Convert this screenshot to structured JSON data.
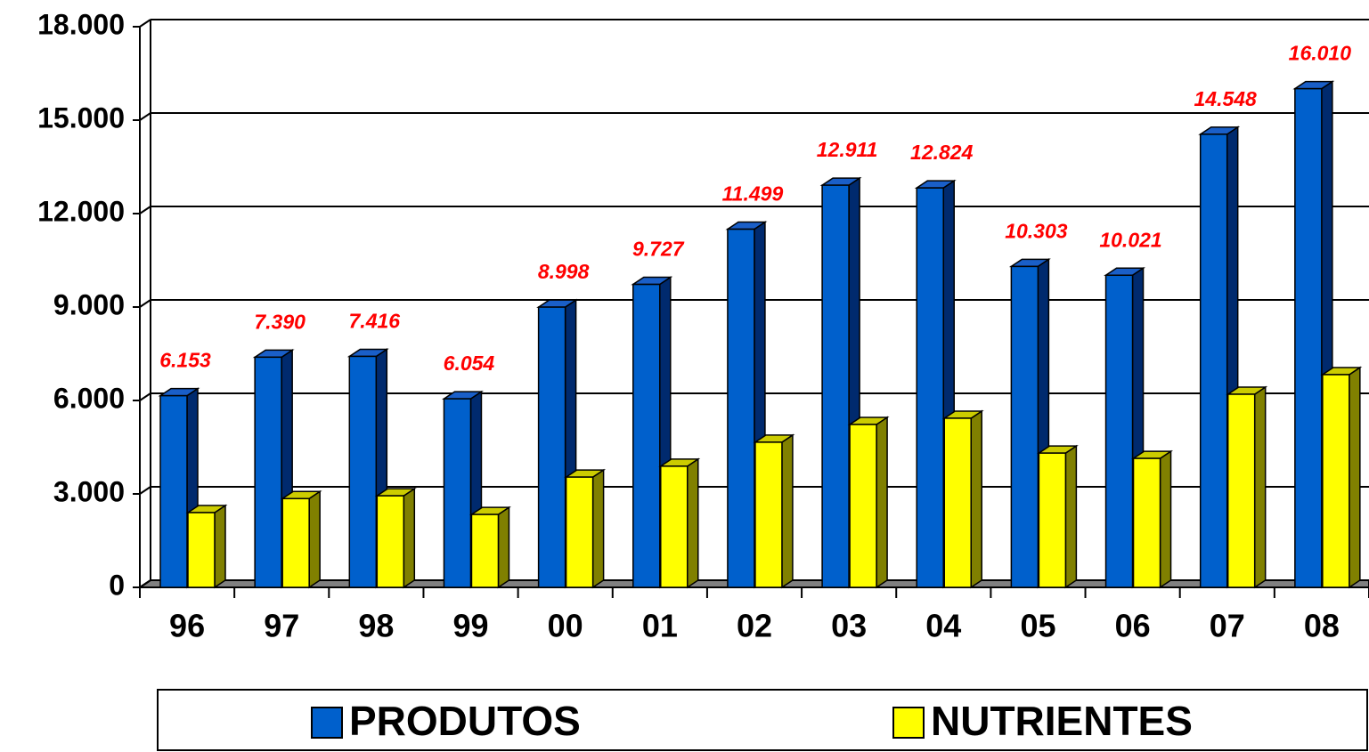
{
  "chart_data": {
    "type": "bar3d",
    "categories": [
      "96",
      "97",
      "98",
      "99",
      "00",
      "01",
      "02",
      "03",
      "04",
      "05",
      "06",
      "07",
      "08"
    ],
    "series": [
      {
        "name": "PRODUTOS",
        "color": "#0060cc",
        "side_color": "#002a6e",
        "top_color": "#1a5fc8",
        "values": [
          6153,
          7390,
          7416,
          6054,
          8998,
          9727,
          11499,
          12911,
          12824,
          10303,
          10021,
          14548,
          16010
        ],
        "value_labels": [
          "6.153",
          "7.390",
          "7.416",
          "6.054",
          "8.998",
          "9.727",
          "11.499",
          "12.911",
          "12.824",
          "10.303",
          "10.021",
          "14.548",
          "16.010"
        ]
      },
      {
        "name": "NUTRIENTES",
        "color": "#ffff00",
        "side_color": "#808000",
        "top_color": "#cccc00",
        "values": [
          2400,
          2850,
          2940,
          2340,
          3540,
          3890,
          4660,
          5230,
          5430,
          4310,
          4140,
          6200,
          6830
        ]
      }
    ],
    "ylim": [
      0,
      18000
    ],
    "yticks": [
      0,
      {
        "value": 3000,
        "label": "3.000"
      },
      {
        "value": 6000,
        "label": "6.000"
      },
      {
        "value": 9000,
        "label": "9.000"
      },
      {
        "value": 12000,
        "label": "12.000"
      },
      {
        "value": 15000,
        "label": "15.000"
      },
      {
        "value": 18000,
        "label": "18.000"
      }
    ],
    "grid": true,
    "legend": "bottom",
    "value_label_color": "#ff0000"
  }
}
